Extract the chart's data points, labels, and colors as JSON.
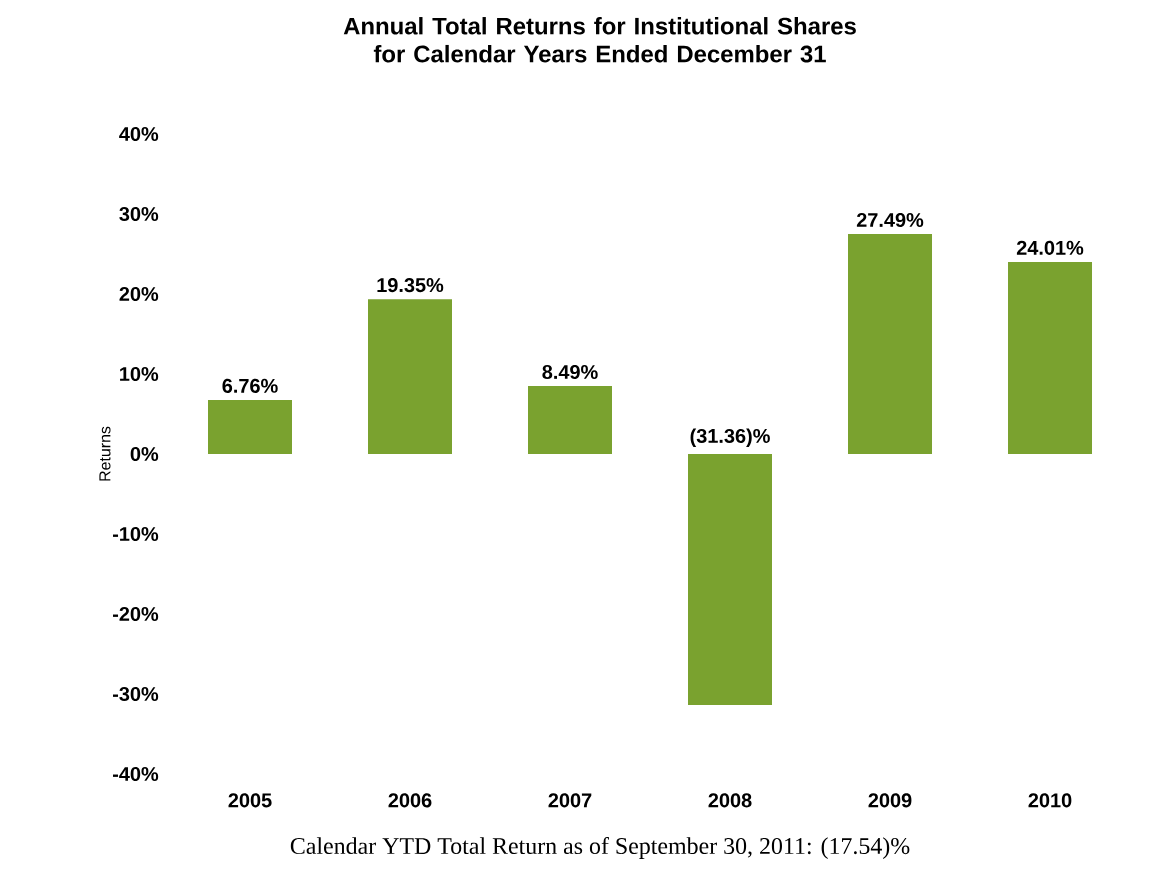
{
  "chart_data": {
    "type": "bar",
    "title": "Annual Total Returns for Institutional Shares for Calendar Years Ended December 31",
    "ylabel": "Returns",
    "categories": [
      "2005",
      "2006",
      "2007",
      "2008",
      "2009",
      "2010"
    ],
    "values": [
      6.76,
      19.35,
      8.49,
      -31.36,
      27.49,
      24.01
    ],
    "value_labels": [
      "6.76%",
      "19.35%",
      "8.49%",
      "(31.36)%",
      "27.49%",
      "24.01%"
    ],
    "color": "#7aa22f",
    "ylim": [
      -40,
      40
    ],
    "yticks": [
      {
        "value": -40,
        "label": "-40%"
      },
      {
        "value": -30,
        "label": "-30%"
      },
      {
        "value": -20,
        "label": "-20%"
      },
      {
        "value": -10,
        "label": "-10%"
      },
      {
        "value": 0,
        "label": "0%"
      },
      {
        "value": 10,
        "label": "10%"
      },
      {
        "value": 20,
        "label": "20%"
      },
      {
        "value": 30,
        "label": "30%"
      },
      {
        "value": 40,
        "label": "40%"
      }
    ],
    "annotations": [
      "Calendar YTD Total Return as of September 30, 2011: (17.54)%"
    ]
  }
}
